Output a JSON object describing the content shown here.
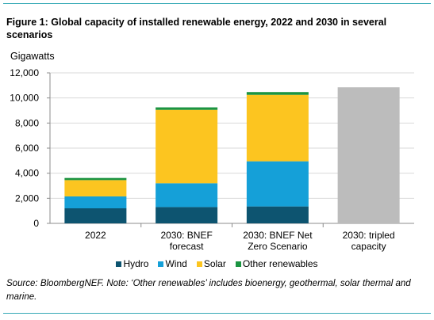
{
  "figure": {
    "title": "Figure 1:  Global capacity of installed renewable energy, 2022 and 2030 in several scenarios",
    "source": "Source: BloombergNEF. Note: ‘Other renewables’ includes bioenergy, geothermal, solar thermal and marine."
  },
  "chart_data": {
    "type": "bar",
    "stacked": true,
    "ylabel": "Gigawatts",
    "ylim": [
      0,
      12000
    ],
    "yticks": [
      "0",
      "2,000",
      "4,000",
      "6,000",
      "8,000",
      "10,000",
      "12,000"
    ],
    "ytick_values": [
      0,
      2000,
      4000,
      6000,
      8000,
      10000,
      12000
    ],
    "grid": true,
    "legend_position": "bottom",
    "categories": [
      [
        "2022"
      ],
      [
        "2030: BNEF",
        "forecast"
      ],
      [
        "2030: BNEF Net",
        "Zero Scenario"
      ],
      [
        "2030: tripled",
        "capacity"
      ]
    ],
    "series": [
      {
        "name": "Hydro",
        "color": "#0d5470",
        "values": [
          1200,
          1300,
          1350,
          0
        ]
      },
      {
        "name": "Wind",
        "color": "#15a0d8",
        "values": [
          950,
          1900,
          3600,
          0
        ]
      },
      {
        "name": "Solar",
        "color": "#fcc520",
        "values": [
          1300,
          5850,
          5300,
          0
        ]
      },
      {
        "name": "Other renewables",
        "color": "#1b9441",
        "values": [
          170,
          200,
          220,
          0
        ]
      },
      {
        "color": "#bcbcbc",
        "values": [
          0,
          0,
          0,
          10850
        ]
      }
    ]
  }
}
